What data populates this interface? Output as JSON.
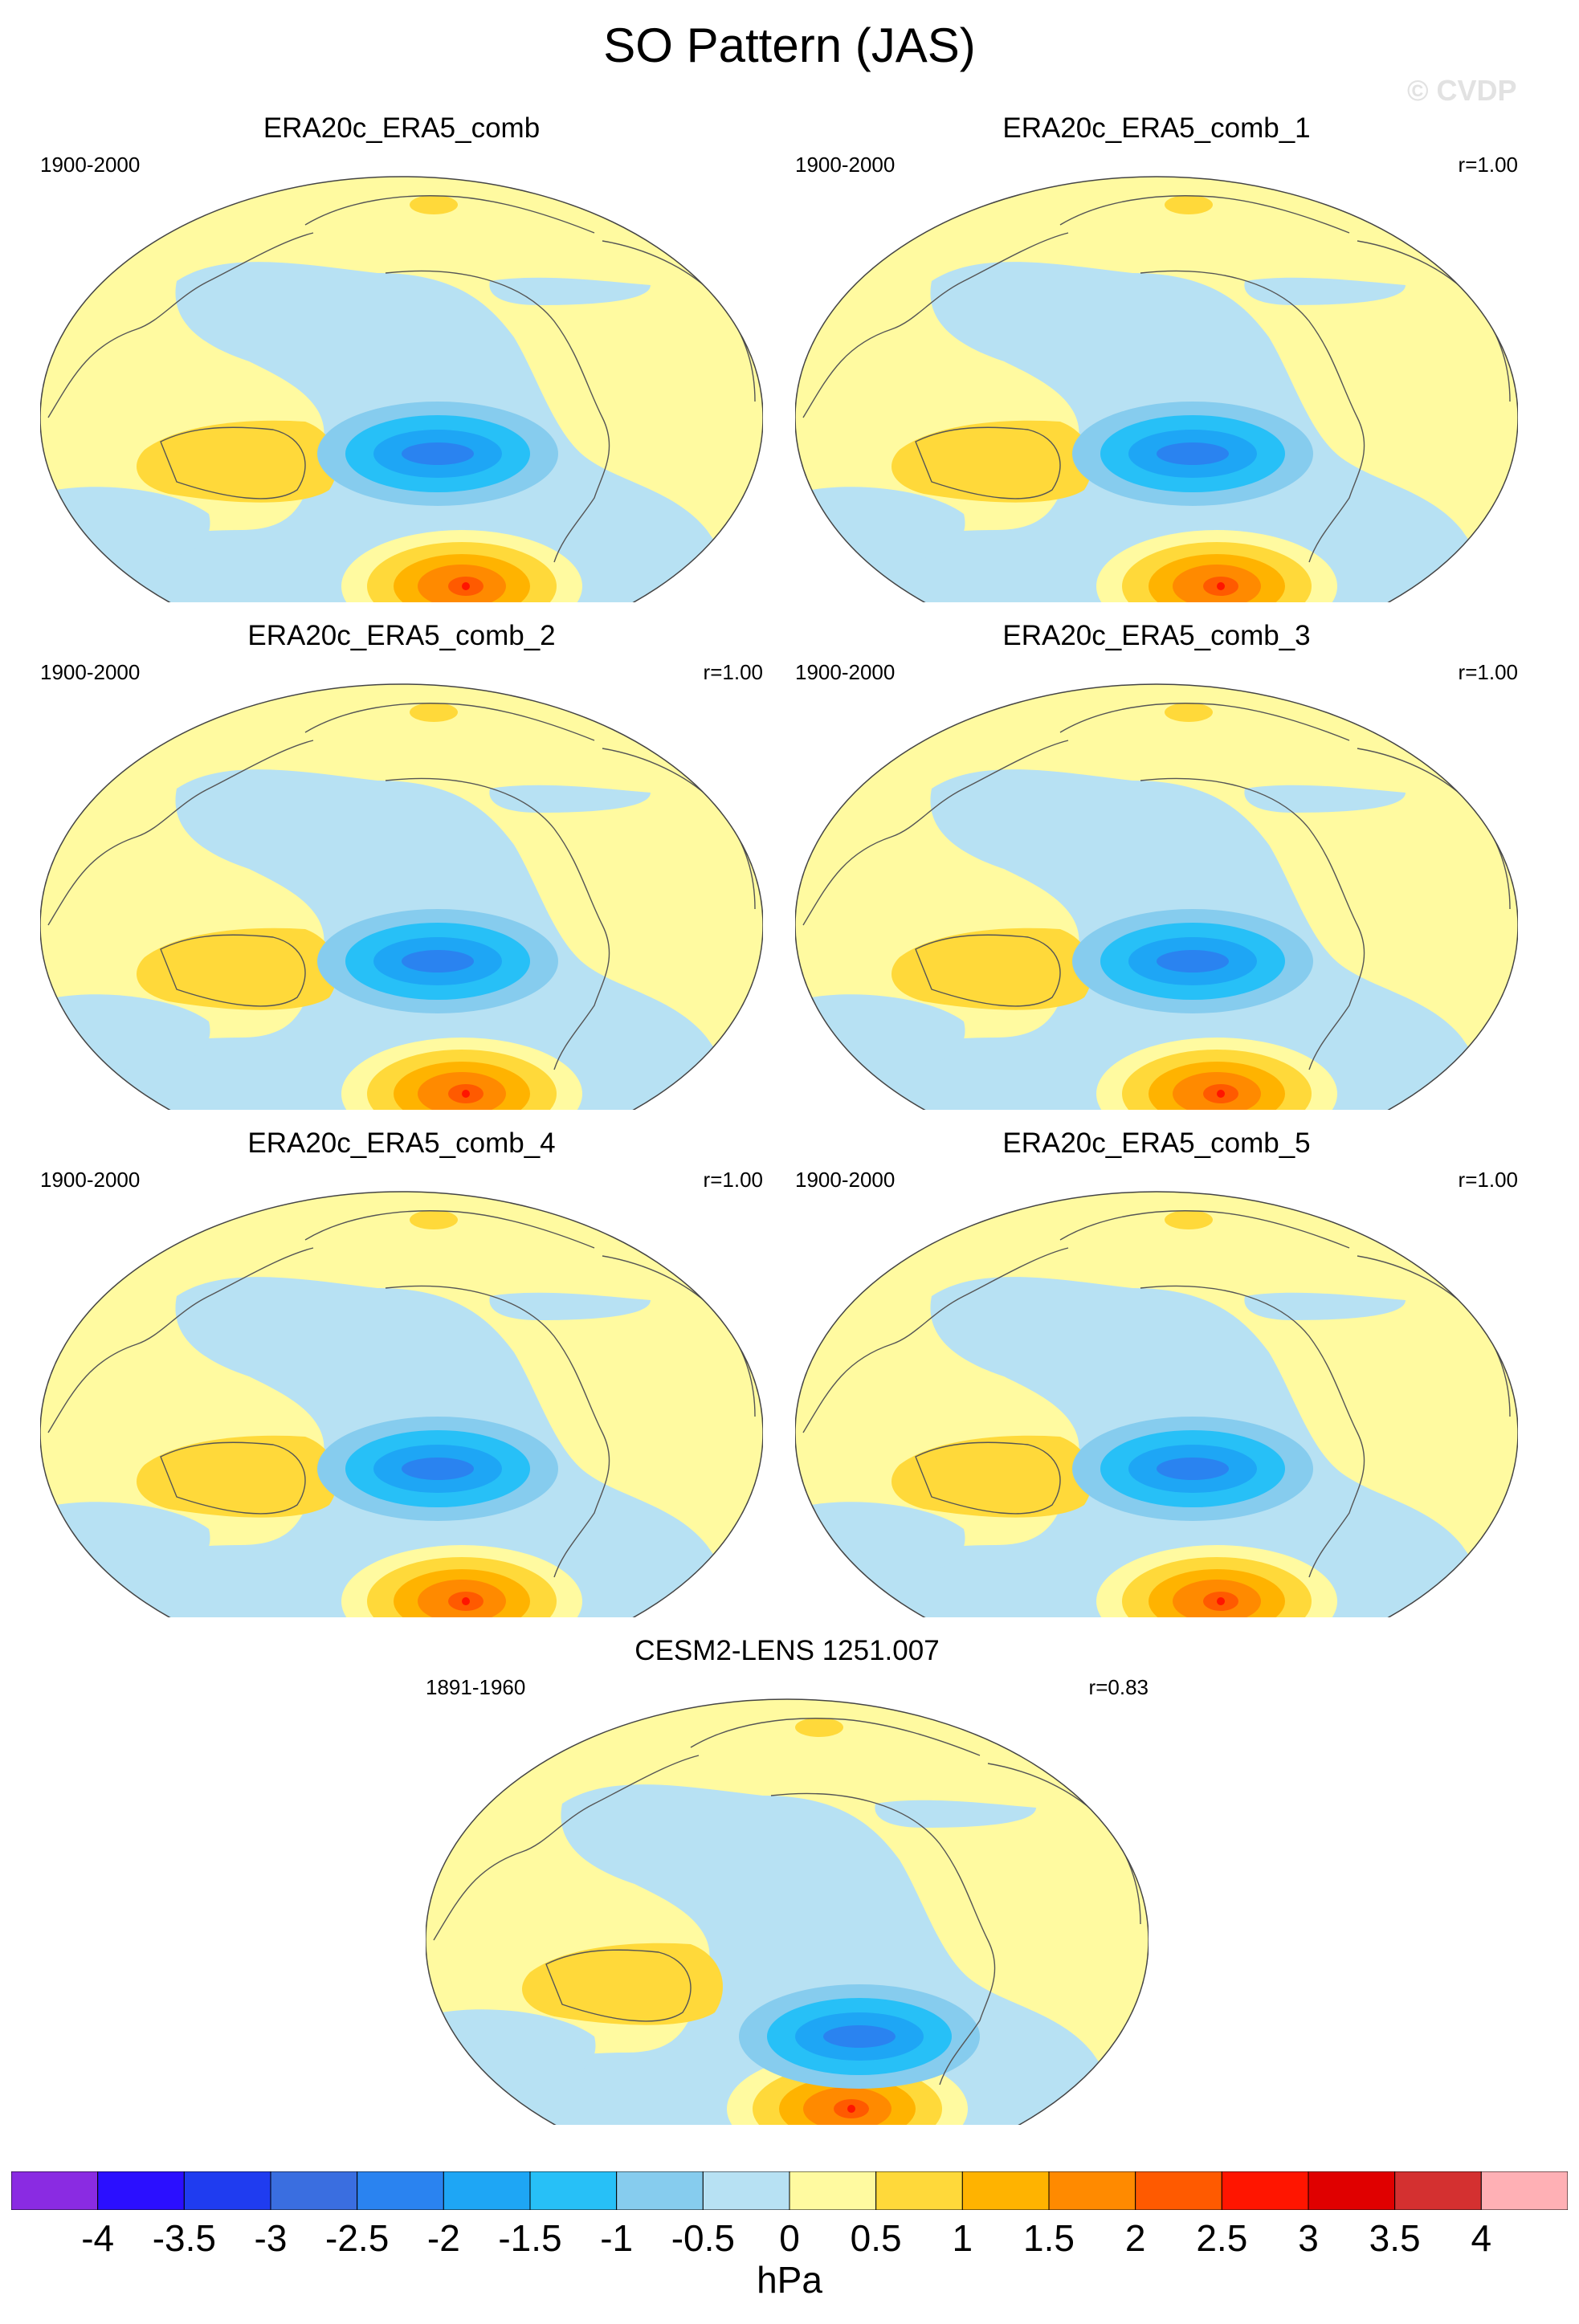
{
  "figure": {
    "title": "SO Pattern (JAS)",
    "watermark": "© CVDP",
    "units": "hPa"
  },
  "panels": [
    {
      "title": "ERA20c_ERA5_comb",
      "period": "1900-2000",
      "corr": ""
    },
    {
      "title": "ERA20c_ERA5_comb_1",
      "period": "1900-2000",
      "corr": "r=1.00"
    },
    {
      "title": "ERA20c_ERA5_comb_2",
      "period": "1900-2000",
      "corr": "r=1.00"
    },
    {
      "title": "ERA20c_ERA5_comb_3",
      "period": "1900-2000",
      "corr": "r=1.00"
    },
    {
      "title": "ERA20c_ERA5_comb_4",
      "period": "1900-2000",
      "corr": "r=1.00"
    },
    {
      "title": "ERA20c_ERA5_comb_5",
      "period": "1900-2000",
      "corr": "r=1.00"
    },
    {
      "title": "CESM2-LENS 1251.007",
      "period": "1891-1960",
      "corr": "r=0.83"
    }
  ],
  "colorbar": {
    "labels": [
      "-4",
      "-3.5",
      "-3",
      "-2.5",
      "-2",
      "-1.5",
      "-1",
      "-0.5",
      "0",
      "0.5",
      "1",
      "1.5",
      "2",
      "2.5",
      "3",
      "3.5",
      "4"
    ],
    "colors": [
      "#8a2be2",
      "#2b0fff",
      "#1f3cf0",
      "#3a6ee0",
      "#2a83f0",
      "#1ea6f5",
      "#27c0f7",
      "#86ccee",
      "#b7e1f3",
      "#fffaa0",
      "#ffd93a",
      "#ffb300",
      "#ff8a00",
      "#ff5a00",
      "#ff1500",
      "#e00000",
      "#d43030",
      "#ffb0b5"
    ]
  }
}
